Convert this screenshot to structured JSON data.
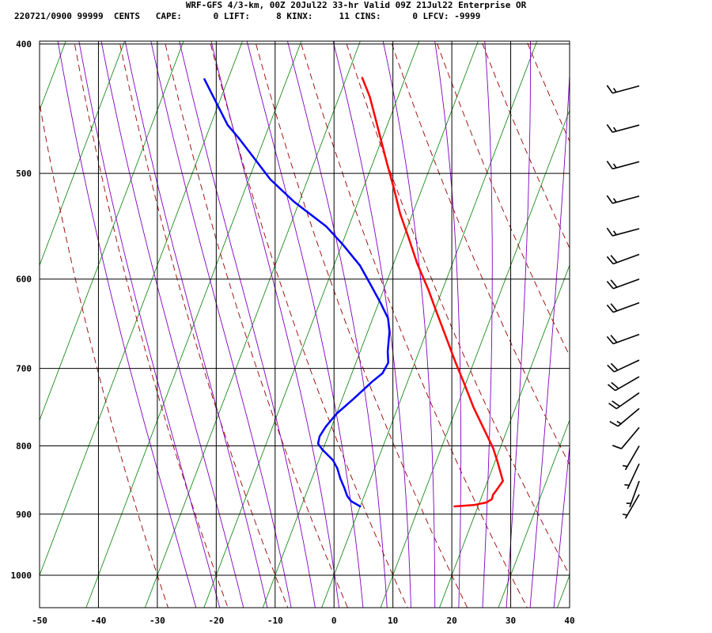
{
  "header": {
    "line1": "WRF-GFS 4/3-km, 00Z 20Jul22 33-hr Valid 09Z 21Jul22 Enterprise OR",
    "line2": "220721/0900 99999  CENTS   CAPE:      0 LIFT:     8 KINX:     11 CINS:      0 LFCV: -9999"
  },
  "chart_data": {
    "type": "line",
    "title": "WRF-GFS 4/3-km, 00Z 20Jul22 33-hr Valid 09Z 21Jul22 Enterprise OR",
    "xlabel": "",
    "ylabel": "",
    "x_ticks": [
      -50,
      -40,
      -30,
      -20,
      -10,
      0,
      10,
      20,
      30,
      40
    ],
    "y_ticks": [
      400,
      500,
      600,
      700,
      800,
      900,
      1000
    ],
    "xlim": [
      -50,
      40
    ],
    "ylim": [
      1050,
      400
    ],
    "y_scale": "log",
    "grid": true,
    "legend": "none",
    "colors": {
      "temperature": "#ff0000",
      "dewpoint": "#0000ff",
      "dry_adiabat": "#990000",
      "moist_adiabat": "#8000c0",
      "isotherm": "#008000",
      "grid": "#000000"
    },
    "series": [
      {
        "name": "",
        "color": "#ff0000",
        "points": [
          [
            16.0,
            888
          ],
          [
            19.2,
            886
          ],
          [
            21.2,
            882
          ],
          [
            21.9,
            877
          ],
          [
            21.8,
            870
          ],
          [
            22.0,
            866
          ],
          [
            22.6,
            850
          ],
          [
            20.5,
            823
          ],
          [
            18.8,
            803
          ],
          [
            15.8,
            775
          ],
          [
            12.9,
            749
          ],
          [
            9.9,
            720
          ],
          [
            6.6,
            690
          ],
          [
            3.3,
            660
          ],
          [
            0.3,
            634
          ],
          [
            -2.4,
            611
          ],
          [
            -6.0,
            584
          ],
          [
            -9.2,
            558
          ],
          [
            -12.1,
            536
          ],
          [
            -14.8,
            513
          ],
          [
            -17.5,
            492
          ],
          [
            -20.1,
            472
          ],
          [
            -22.4,
            455
          ],
          [
            -24.8,
            438
          ],
          [
            -27.3,
            424
          ]
        ]
      },
      {
        "name": "",
        "color": "#0000ff",
        "points": [
          [
            0.0,
            888
          ],
          [
            -1.9,
            880
          ],
          [
            -2.9,
            872
          ],
          [
            -3.9,
            860
          ],
          [
            -5.2,
            846
          ],
          [
            -6.3,
            832
          ],
          [
            -7.6,
            820
          ],
          [
            -10.1,
            805
          ],
          [
            -11.2,
            797
          ],
          [
            -11.4,
            787
          ],
          [
            -11.0,
            774
          ],
          [
            -10.0,
            757
          ],
          [
            -8.1,
            738
          ],
          [
            -6.0,
            716
          ],
          [
            -4.8,
            706
          ],
          [
            -4.5,
            693
          ],
          [
            -5.3,
            680
          ],
          [
            -6.3,
            657
          ],
          [
            -7.4,
            642
          ],
          [
            -9.7,
            625
          ],
          [
            -12.8,
            604
          ],
          [
            -15.6,
            586
          ],
          [
            -19.9,
            565
          ],
          [
            -23.8,
            548
          ],
          [
            -30.9,
            525
          ],
          [
            -36.4,
            505
          ],
          [
            -40.7,
            486
          ],
          [
            -44.5,
            470
          ],
          [
            -47.1,
            460
          ],
          [
            -54.0,
            425
          ]
        ]
      }
    ],
    "wind_barbs": [
      {
        "pressure": 870,
        "direction": 210,
        "speed": 5
      },
      {
        "pressure": 850,
        "direction": 200,
        "speed": 5
      },
      {
        "pressure": 825,
        "direction": 205,
        "speed": 5
      },
      {
        "pressure": 800,
        "direction": 210,
        "speed": 5
      },
      {
        "pressure": 775,
        "direction": 220,
        "speed": 10
      },
      {
        "pressure": 750,
        "direction": 230,
        "speed": 15
      },
      {
        "pressure": 730,
        "direction": 235,
        "speed": 20
      },
      {
        "pressure": 710,
        "direction": 240,
        "speed": 20
      },
      {
        "pressure": 690,
        "direction": 245,
        "speed": 20
      },
      {
        "pressure": 660,
        "direction": 250,
        "speed": 20
      },
      {
        "pressure": 625,
        "direction": 250,
        "speed": 20
      },
      {
        "pressure": 600,
        "direction": 250,
        "speed": 20
      },
      {
        "pressure": 575,
        "direction": 250,
        "speed": 20
      },
      {
        "pressure": 550,
        "direction": 255,
        "speed": 15
      },
      {
        "pressure": 520,
        "direction": 255,
        "speed": 15
      },
      {
        "pressure": 490,
        "direction": 255,
        "speed": 15
      },
      {
        "pressure": 460,
        "direction": 255,
        "speed": 15
      },
      {
        "pressure": 430,
        "direction": 255,
        "speed": 15
      }
    ]
  }
}
